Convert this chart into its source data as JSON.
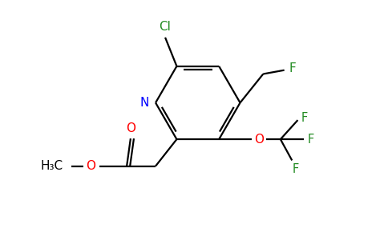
{
  "background_color": "#ffffff",
  "atom_colors": {
    "C": "#000000",
    "N": "#0000ff",
    "O": "#ff0000",
    "F": "#228B22",
    "Cl": "#228B22"
  },
  "figsize": [
    4.84,
    3.0
  ],
  "dpi": 100,
  "lw": 1.6,
  "fs": 10.5
}
